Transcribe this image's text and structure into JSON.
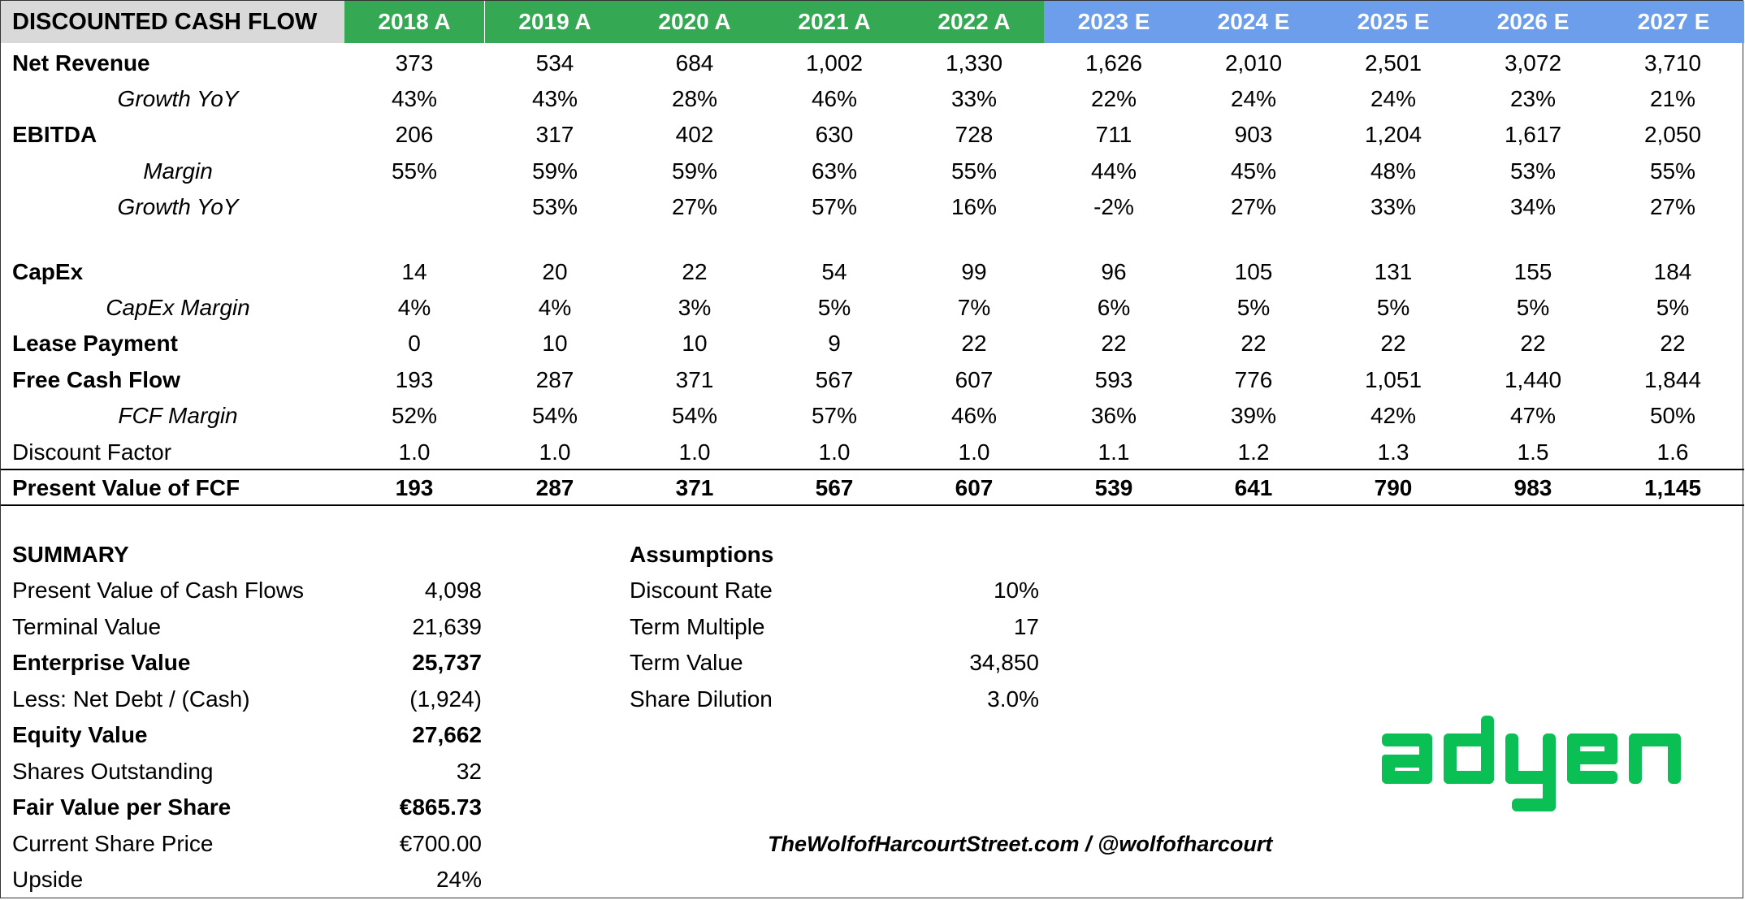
{
  "title": "DISCOUNTED CASH FLOW",
  "years": [
    {
      "label": "2018 A",
      "type": "actual"
    },
    {
      "label": "2019 A",
      "type": "actual"
    },
    {
      "label": "2020 A",
      "type": "actual"
    },
    {
      "label": "2021 A",
      "type": "actual"
    },
    {
      "label": "2022 A",
      "type": "actual"
    },
    {
      "label": "2023 E",
      "type": "estimate"
    },
    {
      "label": "2024 E",
      "type": "estimate"
    },
    {
      "label": "2025 E",
      "type": "estimate"
    },
    {
      "label": "2026 E",
      "type": "estimate"
    },
    {
      "label": "2027 E",
      "type": "estimate"
    }
  ],
  "colors": {
    "actual": "#34a853",
    "estimate": "#6d9eeb",
    "title_bg": "#d9d9d9",
    "logo": "#0abf53"
  },
  "rows": [
    {
      "label": "Net Revenue",
      "style": "bold",
      "values": [
        "373",
        "534",
        "684",
        "1,002",
        "1,330",
        "1,626",
        "2,010",
        "2,501",
        "3,072",
        "3,710"
      ]
    },
    {
      "label": "Growth YoY",
      "style": "italic",
      "values": [
        "43%",
        "43%",
        "28%",
        "46%",
        "33%",
        "22%",
        "24%",
        "24%",
        "23%",
        "21%"
      ]
    },
    {
      "label": "EBITDA",
      "style": "bold",
      "values": [
        "206",
        "317",
        "402",
        "630",
        "728",
        "711",
        "903",
        "1,204",
        "1,617",
        "2,050"
      ]
    },
    {
      "label": "Margin",
      "style": "italic",
      "values": [
        "55%",
        "59%",
        "59%",
        "63%",
        "55%",
        "44%",
        "45%",
        "48%",
        "53%",
        "55%"
      ]
    },
    {
      "label": "Growth YoY",
      "style": "italic",
      "values": [
        "",
        "53%",
        "27%",
        "57%",
        "16%",
        "-2%",
        "27%",
        "33%",
        "34%",
        "27%"
      ]
    },
    {
      "label": "CapEx",
      "style": "bold",
      "values": [
        "14",
        "20",
        "22",
        "54",
        "99",
        "96",
        "105",
        "131",
        "155",
        "184"
      ]
    },
    {
      "label": "CapEx Margin",
      "style": "italic",
      "values": [
        "4%",
        "4%",
        "3%",
        "5%",
        "7%",
        "6%",
        "5%",
        "5%",
        "5%",
        "5%"
      ]
    },
    {
      "label": "Lease Payment",
      "style": "bold",
      "values": [
        "0",
        "10",
        "10",
        "9",
        "22",
        "22",
        "22",
        "22",
        "22",
        "22"
      ]
    },
    {
      "label": "Free Cash Flow",
      "style": "bold",
      "values": [
        "193",
        "287",
        "371",
        "567",
        "607",
        "593",
        "776",
        "1,051",
        "1,440",
        "1,844"
      ]
    },
    {
      "label": "FCF Margin",
      "style": "italic",
      "values": [
        "52%",
        "54%",
        "54%",
        "57%",
        "46%",
        "36%",
        "39%",
        "42%",
        "47%",
        "50%"
      ]
    },
    {
      "label": "Discount Factor",
      "style": "plain",
      "values": [
        "1.0",
        "1.0",
        "1.0",
        "1.0",
        "1.0",
        "1.1",
        "1.2",
        "1.3",
        "1.5",
        "1.6"
      ]
    },
    {
      "label": "Present Value of FCF",
      "style": "pv",
      "values": [
        "193",
        "287",
        "371",
        "567",
        "607",
        "539",
        "641",
        "790",
        "983",
        "1,145"
      ]
    }
  ],
  "summary": {
    "heading": "SUMMARY",
    "items": [
      {
        "label": "Present Value of Cash Flows",
        "value": "4,098",
        "bold": false
      },
      {
        "label": "Terminal Value",
        "value": "21,639",
        "bold": false
      },
      {
        "label": "Enterprise Value",
        "value": "25,737",
        "bold": true
      },
      {
        "label": "Less: Net Debt / (Cash)",
        "value": "(1,924)",
        "bold": false
      },
      {
        "label": "Equity Value",
        "value": "27,662",
        "bold": true
      },
      {
        "label": "Shares Outstanding",
        "value": "32",
        "bold": false
      },
      {
        "label": "Fair Value per Share",
        "value": "€865.73",
        "bold": true
      },
      {
        "label": "Current Share Price",
        "value": "€700.00",
        "bold": false
      },
      {
        "label": "Upside",
        "value": "24%",
        "bold": false
      }
    ]
  },
  "assumptions": {
    "heading": "Assumptions",
    "items": [
      {
        "label": "Discount Rate",
        "value": "10%"
      },
      {
        "label": "Term Multiple",
        "value": "17"
      },
      {
        "label": "Term Value",
        "value": "34,850"
      },
      {
        "label": "Share Dilution",
        "value": "3.0%"
      }
    ]
  },
  "logo": {
    "text": "adyen",
    "icon": "adyen-logo"
  },
  "credit": "TheWolfofHarcourtStreet.com / @wolfofharcourt"
}
